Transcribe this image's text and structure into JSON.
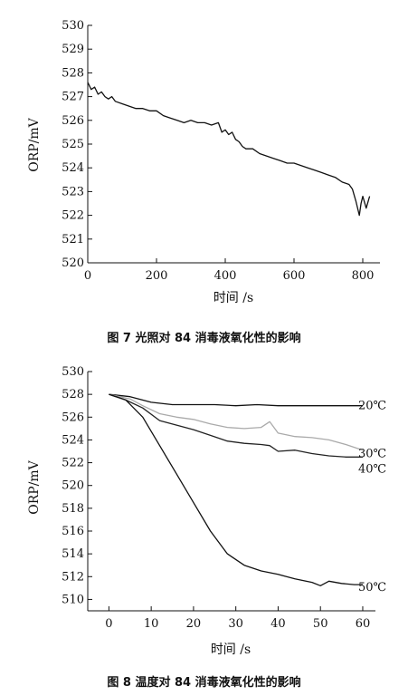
{
  "chart_data": [
    {
      "type": "line",
      "xlabel": "时间 /s",
      "ylabel": "ORP/mV",
      "xlim": [
        0,
        850
      ],
      "ylim": [
        520,
        530
      ],
      "xticks": [
        0,
        200,
        400,
        600,
        800
      ],
      "yticks": [
        520,
        521,
        522,
        523,
        524,
        525,
        526,
        527,
        528,
        529,
        530
      ],
      "series": [
        {
          "color": "#111111",
          "x": [
            0,
            10,
            20,
            30,
            40,
            50,
            60,
            70,
            80,
            100,
            120,
            140,
            160,
            180,
            200,
            220,
            240,
            260,
            280,
            300,
            320,
            340,
            360,
            380,
            390,
            400,
            410,
            420,
            430,
            440,
            450,
            460,
            480,
            500,
            520,
            540,
            560,
            580,
            600,
            620,
            640,
            660,
            680,
            700,
            720,
            740,
            760,
            770,
            780,
            790,
            795,
            800,
            810,
            820
          ],
          "y": [
            527.6,
            527.3,
            527.4,
            527.1,
            527.2,
            527.0,
            526.9,
            527.0,
            526.8,
            526.7,
            526.6,
            526.5,
            526.5,
            526.4,
            526.4,
            526.2,
            526.1,
            526.0,
            525.9,
            526.0,
            525.9,
            525.9,
            525.8,
            525.9,
            525.5,
            525.6,
            525.4,
            525.5,
            525.2,
            525.1,
            524.9,
            524.8,
            524.8,
            524.6,
            524.5,
            524.4,
            524.3,
            524.2,
            524.2,
            524.1,
            524.0,
            523.9,
            523.8,
            523.7,
            523.6,
            523.4,
            523.3,
            523.1,
            522.6,
            522.0,
            522.5,
            522.8,
            522.3,
            522.8
          ]
        }
      ]
    },
    {
      "type": "line",
      "xlabel": "时间 /s",
      "ylabel": "ORP/mV",
      "xlim": [
        -5,
        63
      ],
      "ylim": [
        509,
        530
      ],
      "xticks": [
        0,
        10,
        20,
        30,
        40,
        50,
        60
      ],
      "yticks": [
        510,
        512,
        514,
        516,
        518,
        520,
        522,
        524,
        526,
        528,
        530
      ],
      "series": [
        {
          "name": "20℃",
          "color": "#111111",
          "x": [
            0,
            5,
            10,
            15,
            20,
            25,
            30,
            35,
            40,
            45,
            50,
            55,
            60
          ],
          "y": [
            528.0,
            527.8,
            527.3,
            527.1,
            527.1,
            527.1,
            527.0,
            527.1,
            527.0,
            527.0,
            527.0,
            527.0,
            527.0
          ]
        },
        {
          "name": "30℃",
          "color": "#aaaaaa",
          "x": [
            0,
            5,
            8,
            12,
            16,
            20,
            24,
            28,
            32,
            36,
            38,
            40,
            44,
            48,
            52,
            56,
            60
          ],
          "y": [
            528.0,
            527.6,
            527.0,
            526.3,
            526.0,
            525.8,
            525.4,
            525.1,
            525.0,
            525.1,
            525.6,
            524.6,
            524.3,
            524.2,
            524.0,
            523.6,
            523.1
          ]
        },
        {
          "name": "40℃",
          "color": "#222222",
          "x": [
            0,
            4,
            8,
            12,
            16,
            20,
            24,
            28,
            32,
            36,
            38,
            40,
            44,
            48,
            52,
            56,
            60
          ],
          "y": [
            528.0,
            527.5,
            526.8,
            525.7,
            525.3,
            524.9,
            524.4,
            523.9,
            523.7,
            523.6,
            523.5,
            523.0,
            523.1,
            522.8,
            522.6,
            522.5,
            522.5
          ]
        },
        {
          "name": "50℃",
          "color": "#111111",
          "x": [
            0,
            4,
            8,
            12,
            16,
            20,
            24,
            28,
            32,
            36,
            40,
            44,
            48,
            50,
            52,
            55,
            58,
            60
          ],
          "y": [
            528.0,
            527.5,
            526.0,
            523.5,
            521.0,
            518.5,
            516.0,
            514.0,
            513.0,
            512.5,
            512.2,
            511.8,
            511.5,
            511.2,
            511.6,
            511.4,
            511.3,
            511.3
          ]
        }
      ]
    }
  ],
  "captions": {
    "fig7": "图 7   光照对 84 消毒液氧化性的影响",
    "fig8": "图 8   温度对 84 消毒液氧化性的影响"
  }
}
